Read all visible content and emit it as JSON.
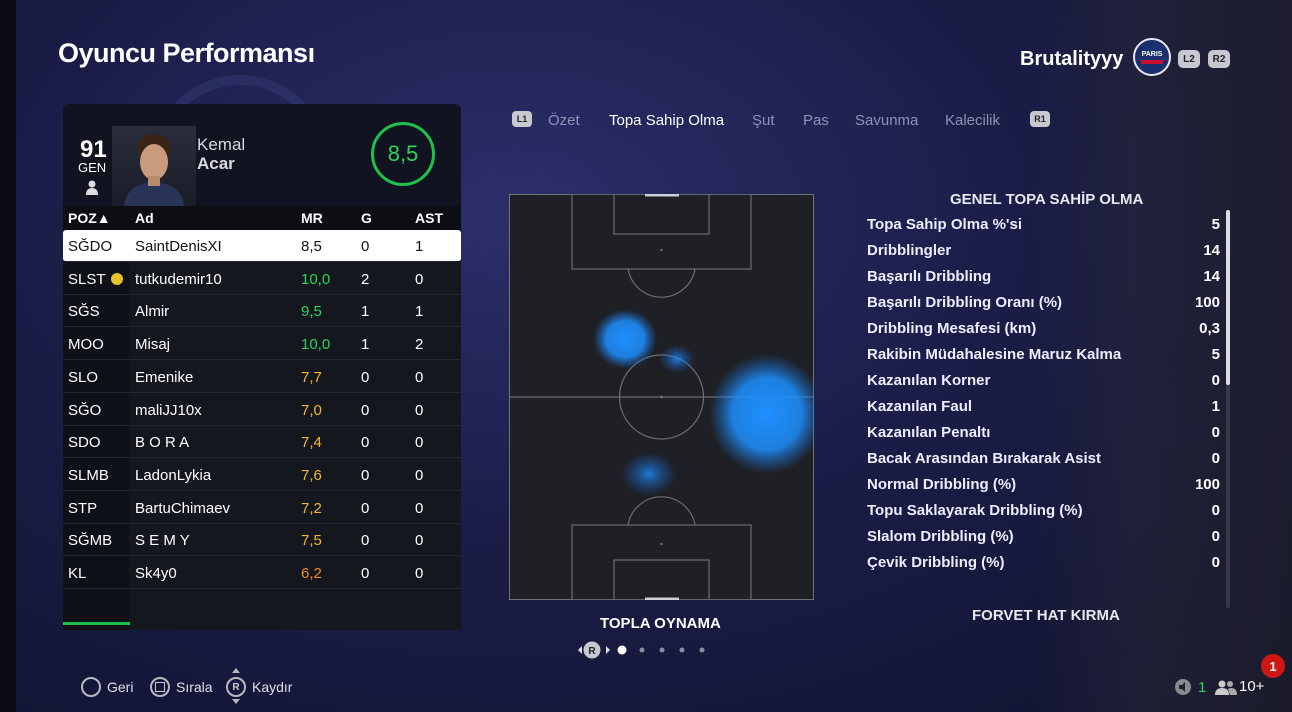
{
  "page_title": "Oyuncu Performansı",
  "user": {
    "name": "Brutalityyy",
    "club_badge_text": "PARIS",
    "shoulder_buttons": [
      "L2",
      "R2"
    ]
  },
  "player": {
    "rating": "91",
    "rating_label": "GEN",
    "first_name": "Kemal",
    "last_name": "Acar",
    "match_rating": "8,5"
  },
  "table": {
    "headers": {
      "pos": "POZ▲",
      "name": "Ad",
      "mr": "MR",
      "g": "G",
      "ast": "AST"
    },
    "rows": [
      {
        "pos": "SĞDO",
        "name": "SaintDenisXI",
        "mr": "8,5",
        "g": "0",
        "ast": "1",
        "mr_color": "#111111"
      },
      {
        "pos": "SLST",
        "name": "tutkudemir10",
        "mr": "10,0",
        "g": "2",
        "ast": "0",
        "mr_color": "#2ad35a"
      },
      {
        "pos": "SĞS",
        "name": "Almir",
        "mr": "9,5",
        "g": "1",
        "ast": "1",
        "mr_color": "#2ad35a"
      },
      {
        "pos": "MOO",
        "name": "Misaj",
        "mr": "10,0",
        "g": "1",
        "ast": "2",
        "mr_color": "#2ad35a"
      },
      {
        "pos": "SLO",
        "name": "Emenike",
        "mr": "7,7",
        "g": "0",
        "ast": "0",
        "mr_color": "#f2b632"
      },
      {
        "pos": "SĞO",
        "name": "maliJJ10x",
        "mr": "7,0",
        "g": "0",
        "ast": "0",
        "mr_color": "#f2b632"
      },
      {
        "pos": "SDO",
        "name": "B O R A",
        "mr": "7,4",
        "g": "0",
        "ast": "0",
        "mr_color": "#f2b632"
      },
      {
        "pos": "SLMB",
        "name": "LadonLykia",
        "mr": "7,6",
        "g": "0",
        "ast": "0",
        "mr_color": "#f2b632"
      },
      {
        "pos": "STP",
        "name": "BartuChimaev",
        "mr": "7,2",
        "g": "0",
        "ast": "0",
        "mr_color": "#f2b632"
      },
      {
        "pos": "SĞMB",
        "name": "S E M Y",
        "mr": "7,5",
        "g": "0",
        "ast": "0",
        "mr_color": "#f2b632"
      },
      {
        "pos": "KL",
        "name": "Sk4y0",
        "mr": "6,2",
        "g": "0",
        "ast": "0",
        "mr_color": "#f08a24"
      }
    ]
  },
  "tabs": {
    "left_chip": "L1",
    "right_chip": "R1",
    "items": [
      "Özet",
      "Topa Sahip Olma",
      "Şut",
      "Pas",
      "Savunma",
      "Kalecilik"
    ],
    "active_index": 1
  },
  "heatmap": {
    "title": "TOPLA OYNAMA",
    "pager_button": "R",
    "pages": 5,
    "current_page": 1
  },
  "stats": {
    "title": "GENEL TOPA SAHİP OLMA",
    "items": [
      {
        "label": "Topa Sahip Olma %'si",
        "value": "5"
      },
      {
        "label": "Dribblingler",
        "value": "14"
      },
      {
        "label": "Başarılı Dribbling",
        "value": "14"
      },
      {
        "label": "Başarılı Dribbling Oranı (%)",
        "value": "100"
      },
      {
        "label": "Dribbling Mesafesi (km)",
        "value": "0,3"
      },
      {
        "label": "Rakibin Müdahalesine Maruz Kalma",
        "value": "5"
      },
      {
        "label": "Kazanılan Korner",
        "value": "0"
      },
      {
        "label": "Kazanılan Faul",
        "value": "1"
      },
      {
        "label": "Kazanılan Penaltı",
        "value": "0"
      },
      {
        "label": "Bacak Arasından Bırakarak Asist",
        "value": "0"
      },
      {
        "label": "Normal Dribbling (%)",
        "value": "100"
      },
      {
        "label": "Topu Saklayarak Dribbling (%)",
        "value": "0"
      },
      {
        "label": "Slalom Dribbling (%)",
        "value": "0"
      },
      {
        "label": "Çevik Dribbling (%)",
        "value": "0"
      }
    ],
    "next_section": "FORVET HAT KIRMA"
  },
  "footer": {
    "back_label": "Geri",
    "sort_label": "Sırala",
    "scroll_label": "Kaydır",
    "scroll_button": "R",
    "voice_count": "1",
    "players_count": "10+",
    "notification_count": "1"
  },
  "colors": {
    "accent_green": "#1ec04e",
    "rating_orange": "#f2b632",
    "heat_blue": "#1e90ff"
  }
}
